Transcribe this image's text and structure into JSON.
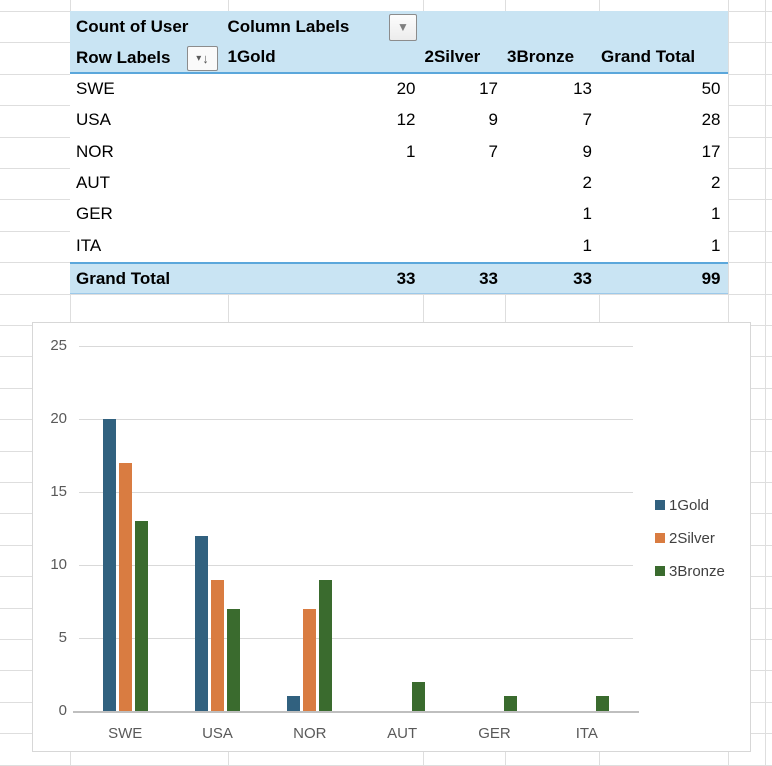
{
  "pivot_table": {
    "title": "Count of User",
    "column_labels_header": "Column Labels",
    "row_labels_header": "Row Labels",
    "columns": [
      "1Gold",
      "2Silver",
      "3Bronze",
      "Grand Total"
    ],
    "rows": [
      {
        "label": "SWE",
        "values": [
          "20",
          "17",
          "13",
          "50"
        ]
      },
      {
        "label": "USA",
        "values": [
          "12",
          "9",
          "7",
          "28"
        ]
      },
      {
        "label": "NOR",
        "values": [
          "1",
          "7",
          "9",
          "17"
        ]
      },
      {
        "label": "AUT",
        "values": [
          "",
          "",
          "2",
          "2"
        ]
      },
      {
        "label": "GER",
        "values": [
          "",
          "",
          "1",
          "1"
        ]
      },
      {
        "label": "ITA",
        "values": [
          "",
          "",
          "1",
          "1"
        ]
      }
    ],
    "grand_total": {
      "label": "Grand Total",
      "values": [
        "33",
        "33",
        "33",
        "99"
      ]
    },
    "header_fill": "#C9E4F3",
    "border_blue": "#5BA7DB"
  },
  "icons": {
    "column_labels_dropdown": "▼",
    "row_labels_filter": "▾",
    "row_labels_sort": "↓"
  },
  "chart_data": {
    "type": "bar",
    "title": "",
    "xlabel": "",
    "ylabel": "",
    "categories": [
      "SWE",
      "USA",
      "NOR",
      "AUT",
      "GER",
      "ITA"
    ],
    "series": [
      {
        "name": "1Gold",
        "color": "#31617F",
        "values": [
          20,
          12,
          1,
          0,
          0,
          0
        ]
      },
      {
        "name": "2Silver",
        "color": "#D97C41",
        "values": [
          17,
          9,
          7,
          0,
          0,
          0
        ]
      },
      {
        "name": "3Bronze",
        "color": "#3A6B2E",
        "values": [
          13,
          7,
          9,
          2,
          1,
          1
        ]
      }
    ],
    "y_ticks": [
      0,
      5,
      10,
      15,
      20,
      25
    ],
    "ylim": [
      0,
      25
    ],
    "grid": true,
    "legend_position": "right",
    "axis_label_color": "#595959",
    "gridline_color": "#D9D9D9",
    "axis_line_color": "#BFBFBF",
    "legend_text_color": "#404040"
  },
  "sheet": {
    "gridline_color": "#DEDEDE"
  }
}
